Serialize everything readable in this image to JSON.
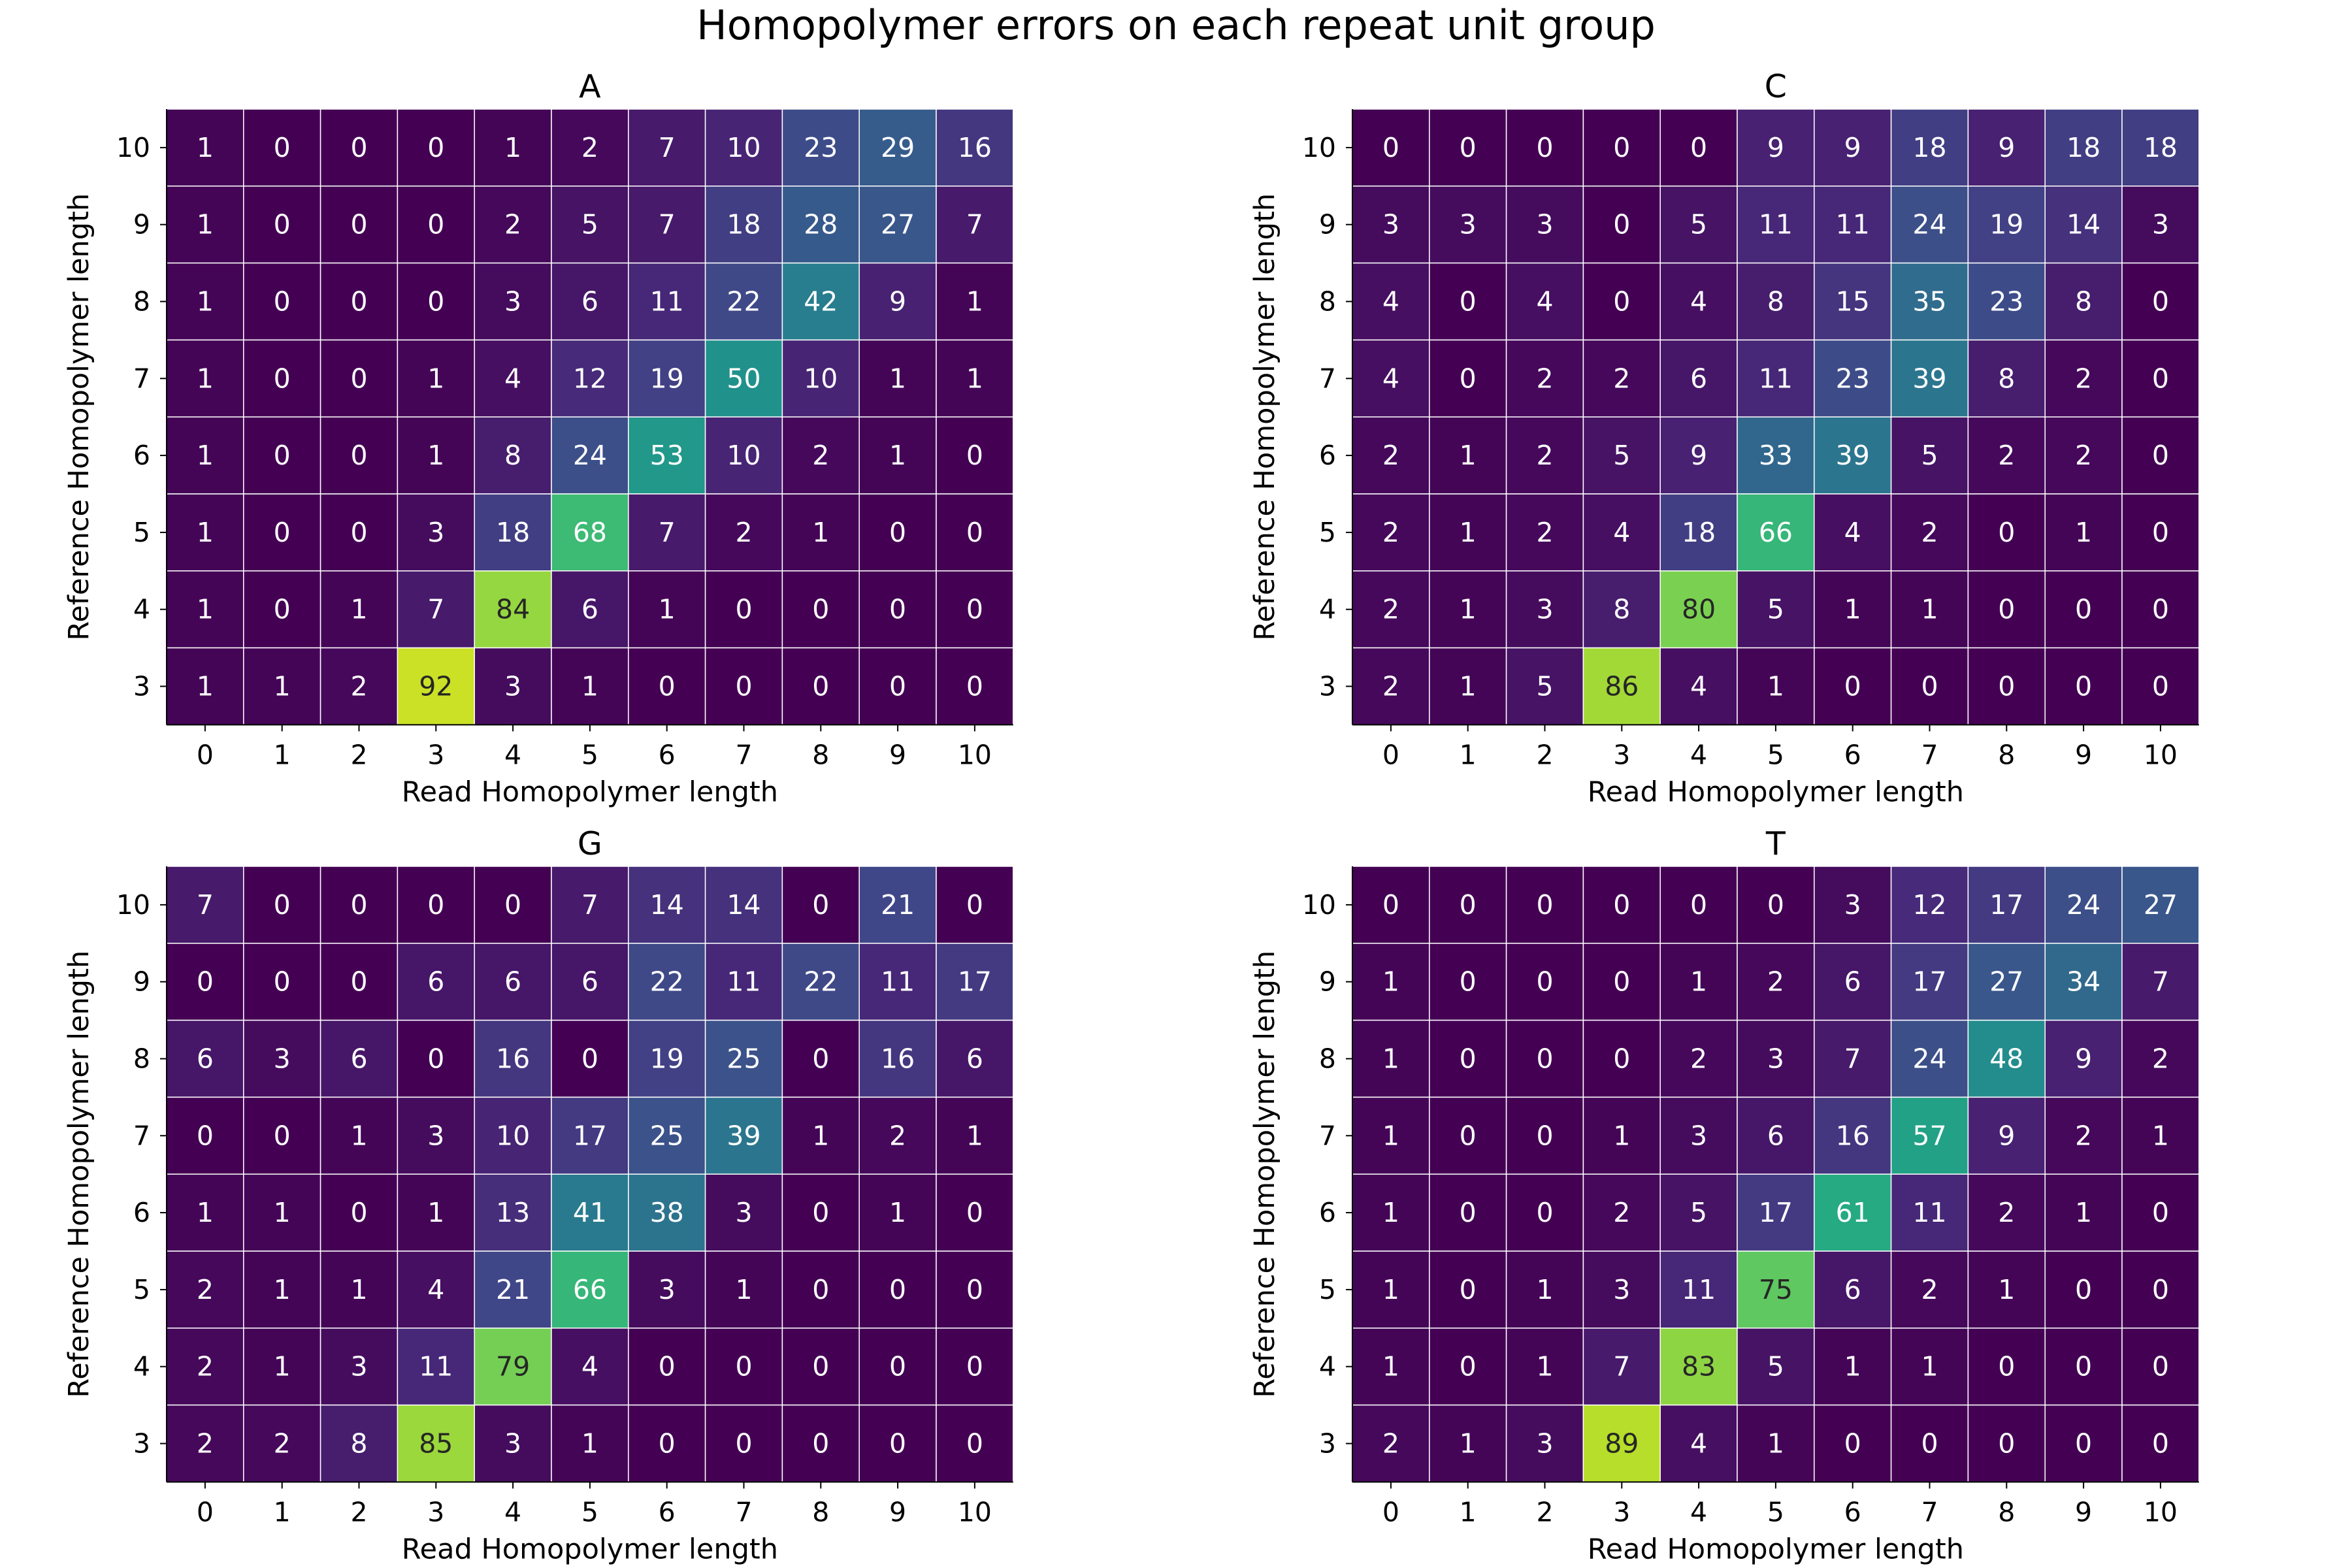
{
  "figure": {
    "title": "Homopolymer errors on each repeat unit group"
  },
  "chart_data": [
    {
      "type": "heatmap",
      "title": "A",
      "xlabel": "Read Homopolymer length",
      "ylabel": "Reference Homopolymer length",
      "x": [
        "0",
        "1",
        "2",
        "3",
        "4",
        "5",
        "6",
        "7",
        "8",
        "9",
        "10"
      ],
      "y": [
        "10",
        "9",
        "8",
        "7",
        "6",
        "5",
        "4",
        "3"
      ],
      "values": [
        [
          1,
          0,
          0,
          0,
          1,
          2,
          7,
          10,
          23,
          29,
          16
        ],
        [
          1,
          0,
          0,
          0,
          2,
          5,
          7,
          18,
          28,
          27,
          7
        ],
        [
          1,
          0,
          0,
          0,
          3,
          6,
          11,
          22,
          42,
          9,
          1
        ],
        [
          1,
          0,
          0,
          1,
          4,
          12,
          19,
          50,
          10,
          1,
          1
        ],
        [
          1,
          0,
          0,
          1,
          8,
          24,
          53,
          10,
          2,
          1,
          0
        ],
        [
          1,
          0,
          0,
          3,
          18,
          68,
          7,
          2,
          1,
          0,
          0
        ],
        [
          1,
          0,
          1,
          7,
          84,
          6,
          1,
          0,
          0,
          0,
          0
        ],
        [
          1,
          1,
          2,
          92,
          3,
          1,
          0,
          0,
          0,
          0,
          0
        ]
      ],
      "colormap": "viridis",
      "vmin": 0,
      "vmax": 100
    },
    {
      "type": "heatmap",
      "title": "C",
      "xlabel": "Read Homopolymer length",
      "ylabel": "Reference Homopolymer length",
      "x": [
        "0",
        "1",
        "2",
        "3",
        "4",
        "5",
        "6",
        "7",
        "8",
        "9",
        "10"
      ],
      "y": [
        "10",
        "9",
        "8",
        "7",
        "6",
        "5",
        "4",
        "3"
      ],
      "values": [
        [
          0,
          0,
          0,
          0,
          0,
          9,
          9,
          18,
          9,
          18,
          18
        ],
        [
          3,
          3,
          3,
          0,
          5,
          11,
          11,
          24,
          19,
          14,
          3
        ],
        [
          4,
          0,
          4,
          0,
          4,
          8,
          15,
          35,
          23,
          8,
          0
        ],
        [
          4,
          0,
          2,
          2,
          6,
          11,
          23,
          39,
          8,
          2,
          0
        ],
        [
          2,
          1,
          2,
          5,
          9,
          33,
          39,
          5,
          2,
          2,
          0
        ],
        [
          2,
          1,
          2,
          4,
          18,
          66,
          4,
          2,
          0,
          1,
          0
        ],
        [
          2,
          1,
          3,
          8,
          80,
          5,
          1,
          1,
          0,
          0,
          0
        ],
        [
          2,
          1,
          5,
          86,
          4,
          1,
          0,
          0,
          0,
          0,
          0
        ]
      ],
      "colormap": "viridis",
      "vmin": 0,
      "vmax": 100
    },
    {
      "type": "heatmap",
      "title": "G",
      "xlabel": "Read Homopolymer length",
      "ylabel": "Reference Homopolymer length",
      "x": [
        "0",
        "1",
        "2",
        "3",
        "4",
        "5",
        "6",
        "7",
        "8",
        "9",
        "10"
      ],
      "y": [
        "10",
        "9",
        "8",
        "7",
        "6",
        "5",
        "4",
        "3"
      ],
      "values": [
        [
          7,
          0,
          0,
          0,
          0,
          7,
          14,
          14,
          0,
          21,
          0
        ],
        [
          0,
          0,
          0,
          6,
          6,
          6,
          22,
          11,
          22,
          11,
          17
        ],
        [
          6,
          3,
          6,
          0,
          16,
          0,
          19,
          25,
          0,
          16,
          6
        ],
        [
          0,
          0,
          1,
          3,
          10,
          17,
          25,
          39,
          1,
          2,
          1
        ],
        [
          1,
          1,
          0,
          1,
          13,
          41,
          38,
          3,
          0,
          1,
          0
        ],
        [
          2,
          1,
          1,
          4,
          21,
          66,
          3,
          1,
          0,
          0,
          0
        ],
        [
          2,
          1,
          3,
          11,
          79,
          4,
          0,
          0,
          0,
          0,
          0
        ],
        [
          2,
          2,
          8,
          85,
          3,
          1,
          0,
          0,
          0,
          0,
          0
        ]
      ],
      "colormap": "viridis",
      "vmin": 0,
      "vmax": 100
    },
    {
      "type": "heatmap",
      "title": "T",
      "xlabel": "Read Homopolymer length",
      "ylabel": "Reference Homopolymer length",
      "x": [
        "0",
        "1",
        "2",
        "3",
        "4",
        "5",
        "6",
        "7",
        "8",
        "9",
        "10"
      ],
      "y": [
        "10",
        "9",
        "8",
        "7",
        "6",
        "5",
        "4",
        "3"
      ],
      "values": [
        [
          0,
          0,
          0,
          0,
          0,
          0,
          3,
          12,
          17,
          24,
          27
        ],
        [
          1,
          0,
          0,
          0,
          1,
          2,
          6,
          17,
          27,
          34,
          7
        ],
        [
          1,
          0,
          0,
          0,
          2,
          3,
          7,
          24,
          48,
          9,
          2
        ],
        [
          1,
          0,
          0,
          1,
          3,
          6,
          16,
          57,
          9,
          2,
          1
        ],
        [
          1,
          0,
          0,
          2,
          5,
          17,
          61,
          11,
          2,
          1,
          0
        ],
        [
          1,
          0,
          1,
          3,
          11,
          75,
          6,
          2,
          1,
          0,
          0
        ],
        [
          1,
          0,
          1,
          7,
          83,
          5,
          1,
          1,
          0,
          0,
          0
        ],
        [
          2,
          1,
          3,
          89,
          4,
          1,
          0,
          0,
          0,
          0,
          0
        ]
      ],
      "colormap": "viridis",
      "vmin": 0,
      "vmax": 100
    }
  ]
}
